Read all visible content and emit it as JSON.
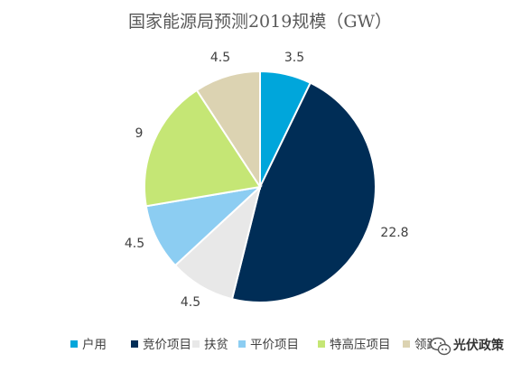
{
  "chart_data": {
    "type": "pie",
    "title": "国家能源局预测2019规模（GW）",
    "categories": [
      "户用",
      "竞价项目",
      "扶贫",
      "平价项目",
      "特高压项目",
      "领跑者"
    ],
    "legend_labels": [
      "户用",
      "竞价项目",
      "扶贫",
      "平价项目",
      "特高压项目",
      "领跑"
    ],
    "values": [
      3.5,
      22.8,
      4.5,
      4.5,
      9,
      4.5
    ],
    "data_labels": [
      "3.5",
      "22.8",
      "4.5",
      "4.5",
      "9",
      "4.5"
    ],
    "colors": [
      "#00a6db",
      "#002d56",
      "#e8e8e8",
      "#8ccdf2",
      "#c5e675",
      "#dcd3b2"
    ],
    "start_angle_deg": 0,
    "direction": "clockwise",
    "legend_position": "bottom"
  },
  "watermark": {
    "icon": "wechat-icon",
    "text": "光伏政策"
  }
}
